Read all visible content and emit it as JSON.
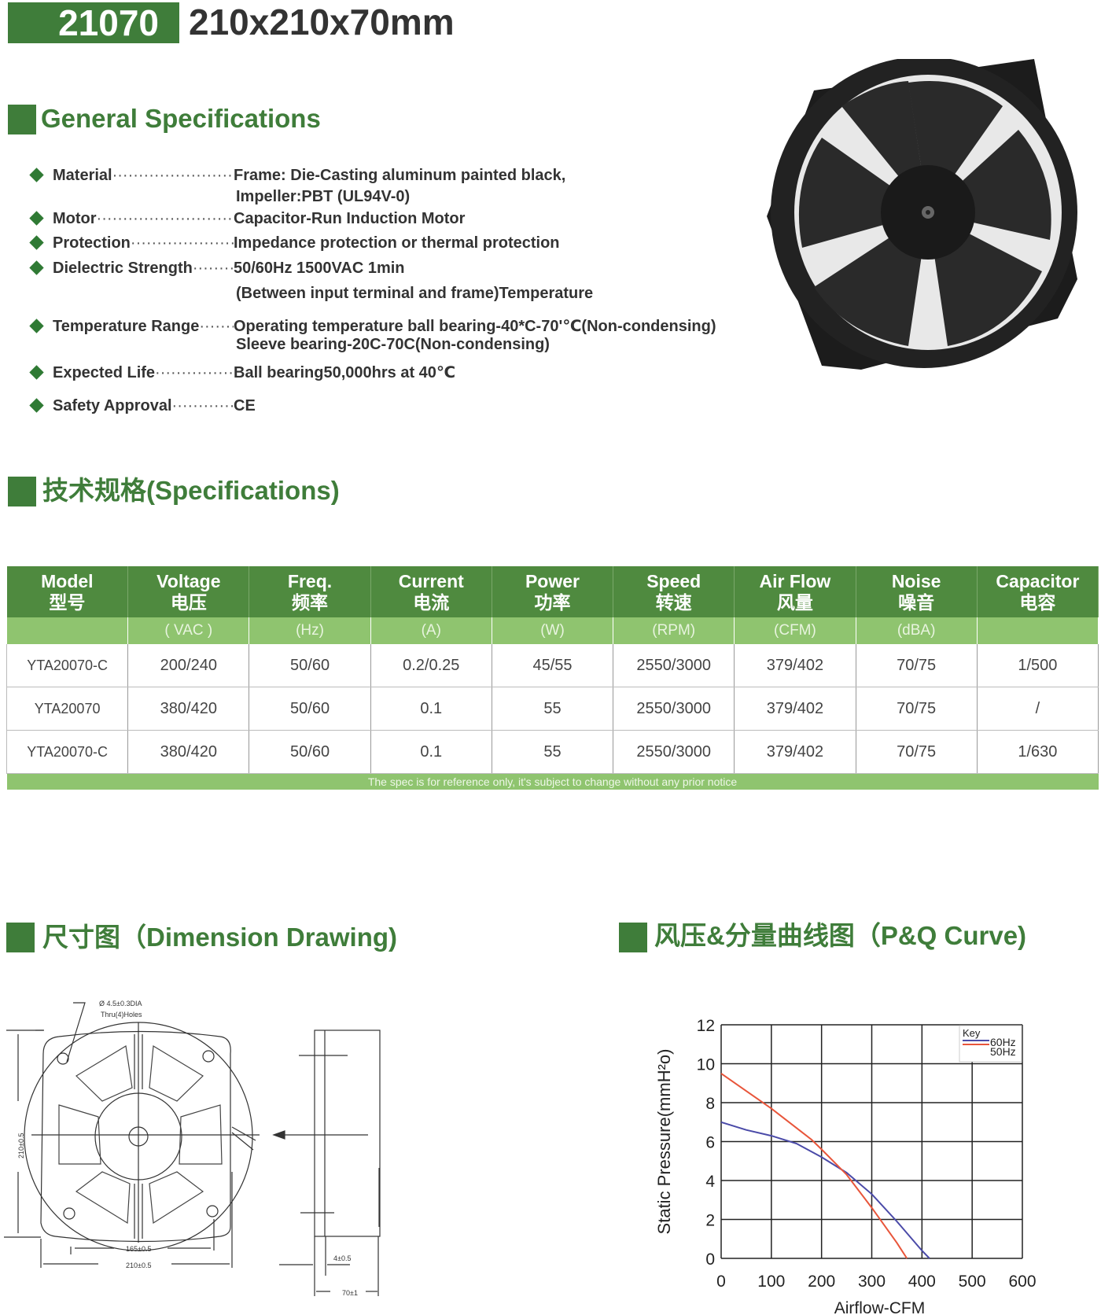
{
  "header": {
    "model": "21070",
    "size": "210x210x70mm"
  },
  "general": {
    "title": "General Specifications",
    "items": [
      {
        "label": "Material",
        "value": "Frame: Die-Casting aluminum painted black,",
        "extra": [
          "Impeller:PBT (UL94V-0)"
        ]
      },
      {
        "label": "Motor",
        "value": "Capacitor-Run Induction Motor",
        "extra": []
      },
      {
        "label": "Protection",
        "value": "Impedance protection or thermal protection",
        "extra": []
      },
      {
        "label": "Dielectric Strength",
        "value": "50/60Hz 1500VAC 1min",
        "extra": [
          "(Between input terminal and frame)Temperature"
        ]
      },
      {
        "label": "Temperature Range",
        "value": "Operating temperature ball bearing-40*C-70'℃(Non-condensing)",
        "extra": [
          "Sleeve bearing-20C-70C(Non-condensing)"
        ]
      },
      {
        "label": "Expected Life",
        "value": "Ball bearing50,000hrs at 40℃",
        "extra": []
      },
      {
        "label": "Safety Approval",
        "value": "CE",
        "extra": []
      }
    ]
  },
  "specs": {
    "title": "技术规格(Specifications)",
    "columns": [
      {
        "en": "Model",
        "cn": "型号",
        "unit": ""
      },
      {
        "en": "Voltage",
        "cn": "电压",
        "unit": "( VAC )"
      },
      {
        "en": "Freq.",
        "cn": "频率",
        "unit": "(Hz)"
      },
      {
        "en": "Current",
        "cn": "电流",
        "unit": "(A)"
      },
      {
        "en": "Power",
        "cn": "功率",
        "unit": "(W)"
      },
      {
        "en": "Speed",
        "cn": "转速",
        "unit": "(RPM)"
      },
      {
        "en": "Air Flow",
        "cn": "风量",
        "unit": "(CFM)"
      },
      {
        "en": "Noise",
        "cn": "噪音",
        "unit": "(dBA)"
      },
      {
        "en": "Capacitor",
        "cn": "电容",
        "unit": ""
      }
    ],
    "rows": [
      [
        "YTA20070-C",
        "200/240",
        "50/60",
        "0.2/0.25",
        "45/55",
        "2550/3000",
        "379/402",
        "70/75",
        "1/500"
      ],
      [
        "YTA20070",
        "380/420",
        "50/60",
        "0.1",
        "55",
        "2550/3000",
        "379/402",
        "70/75",
        "/"
      ],
      [
        "YTA20070-C",
        "380/420",
        "50/60",
        "0.1",
        "55",
        "2550/3000",
        "379/402",
        "70/75",
        "1/630"
      ]
    ],
    "note": "The spec is for reference only, it's subject to change without any prior notice"
  },
  "dimension": {
    "title": "尺寸图（Dimension Drawing)",
    "hole_note": "Ø 4.5±0.3DIA",
    "hole_note2": "Thru(4)Holes",
    "height": "210±0.5",
    "hole_spacing": "165±0.5",
    "width": "210±0.5",
    "frame_thickness": "4±0.5",
    "depth": "70±1"
  },
  "pq": {
    "title": "风压&分量曲线图（P&Q Curve)"
  },
  "colors": {
    "brand_green": "#3f7d3a",
    "light_green": "#8fc46f",
    "curve_60hz": "#4a4aa8",
    "curve_50hz": "#e8553a"
  },
  "chart_data": {
    "type": "line",
    "xlabel": "Airflow-CFM",
    "ylabel": "Static Pressure(mmH²o)",
    "xlim": [
      0,
      600
    ],
    "ylim": [
      0,
      12
    ],
    "xticks": [
      0,
      100,
      200,
      300,
      400,
      500,
      600
    ],
    "yticks": [
      0,
      2,
      4,
      6,
      8,
      10,
      12
    ],
    "grid": true,
    "legend": {
      "title": "Key",
      "placement": "top-right"
    },
    "series": [
      {
        "name": "60Hz",
        "color": "#4a4aa8",
        "x": [
          0,
          50,
          100,
          150,
          200,
          250,
          300,
          350,
          400,
          415
        ],
        "y": [
          7.0,
          6.6,
          6.3,
          5.9,
          5.2,
          4.4,
          3.3,
          1.9,
          0.4,
          0
        ]
      },
      {
        "name": "50Hz",
        "color": "#e8553a",
        "x": [
          0,
          50,
          100,
          150,
          180,
          200,
          250,
          300,
          350,
          370
        ],
        "y": [
          9.5,
          8.6,
          7.7,
          6.7,
          6.1,
          5.6,
          4.3,
          2.6,
          0.8,
          0
        ]
      }
    ]
  }
}
